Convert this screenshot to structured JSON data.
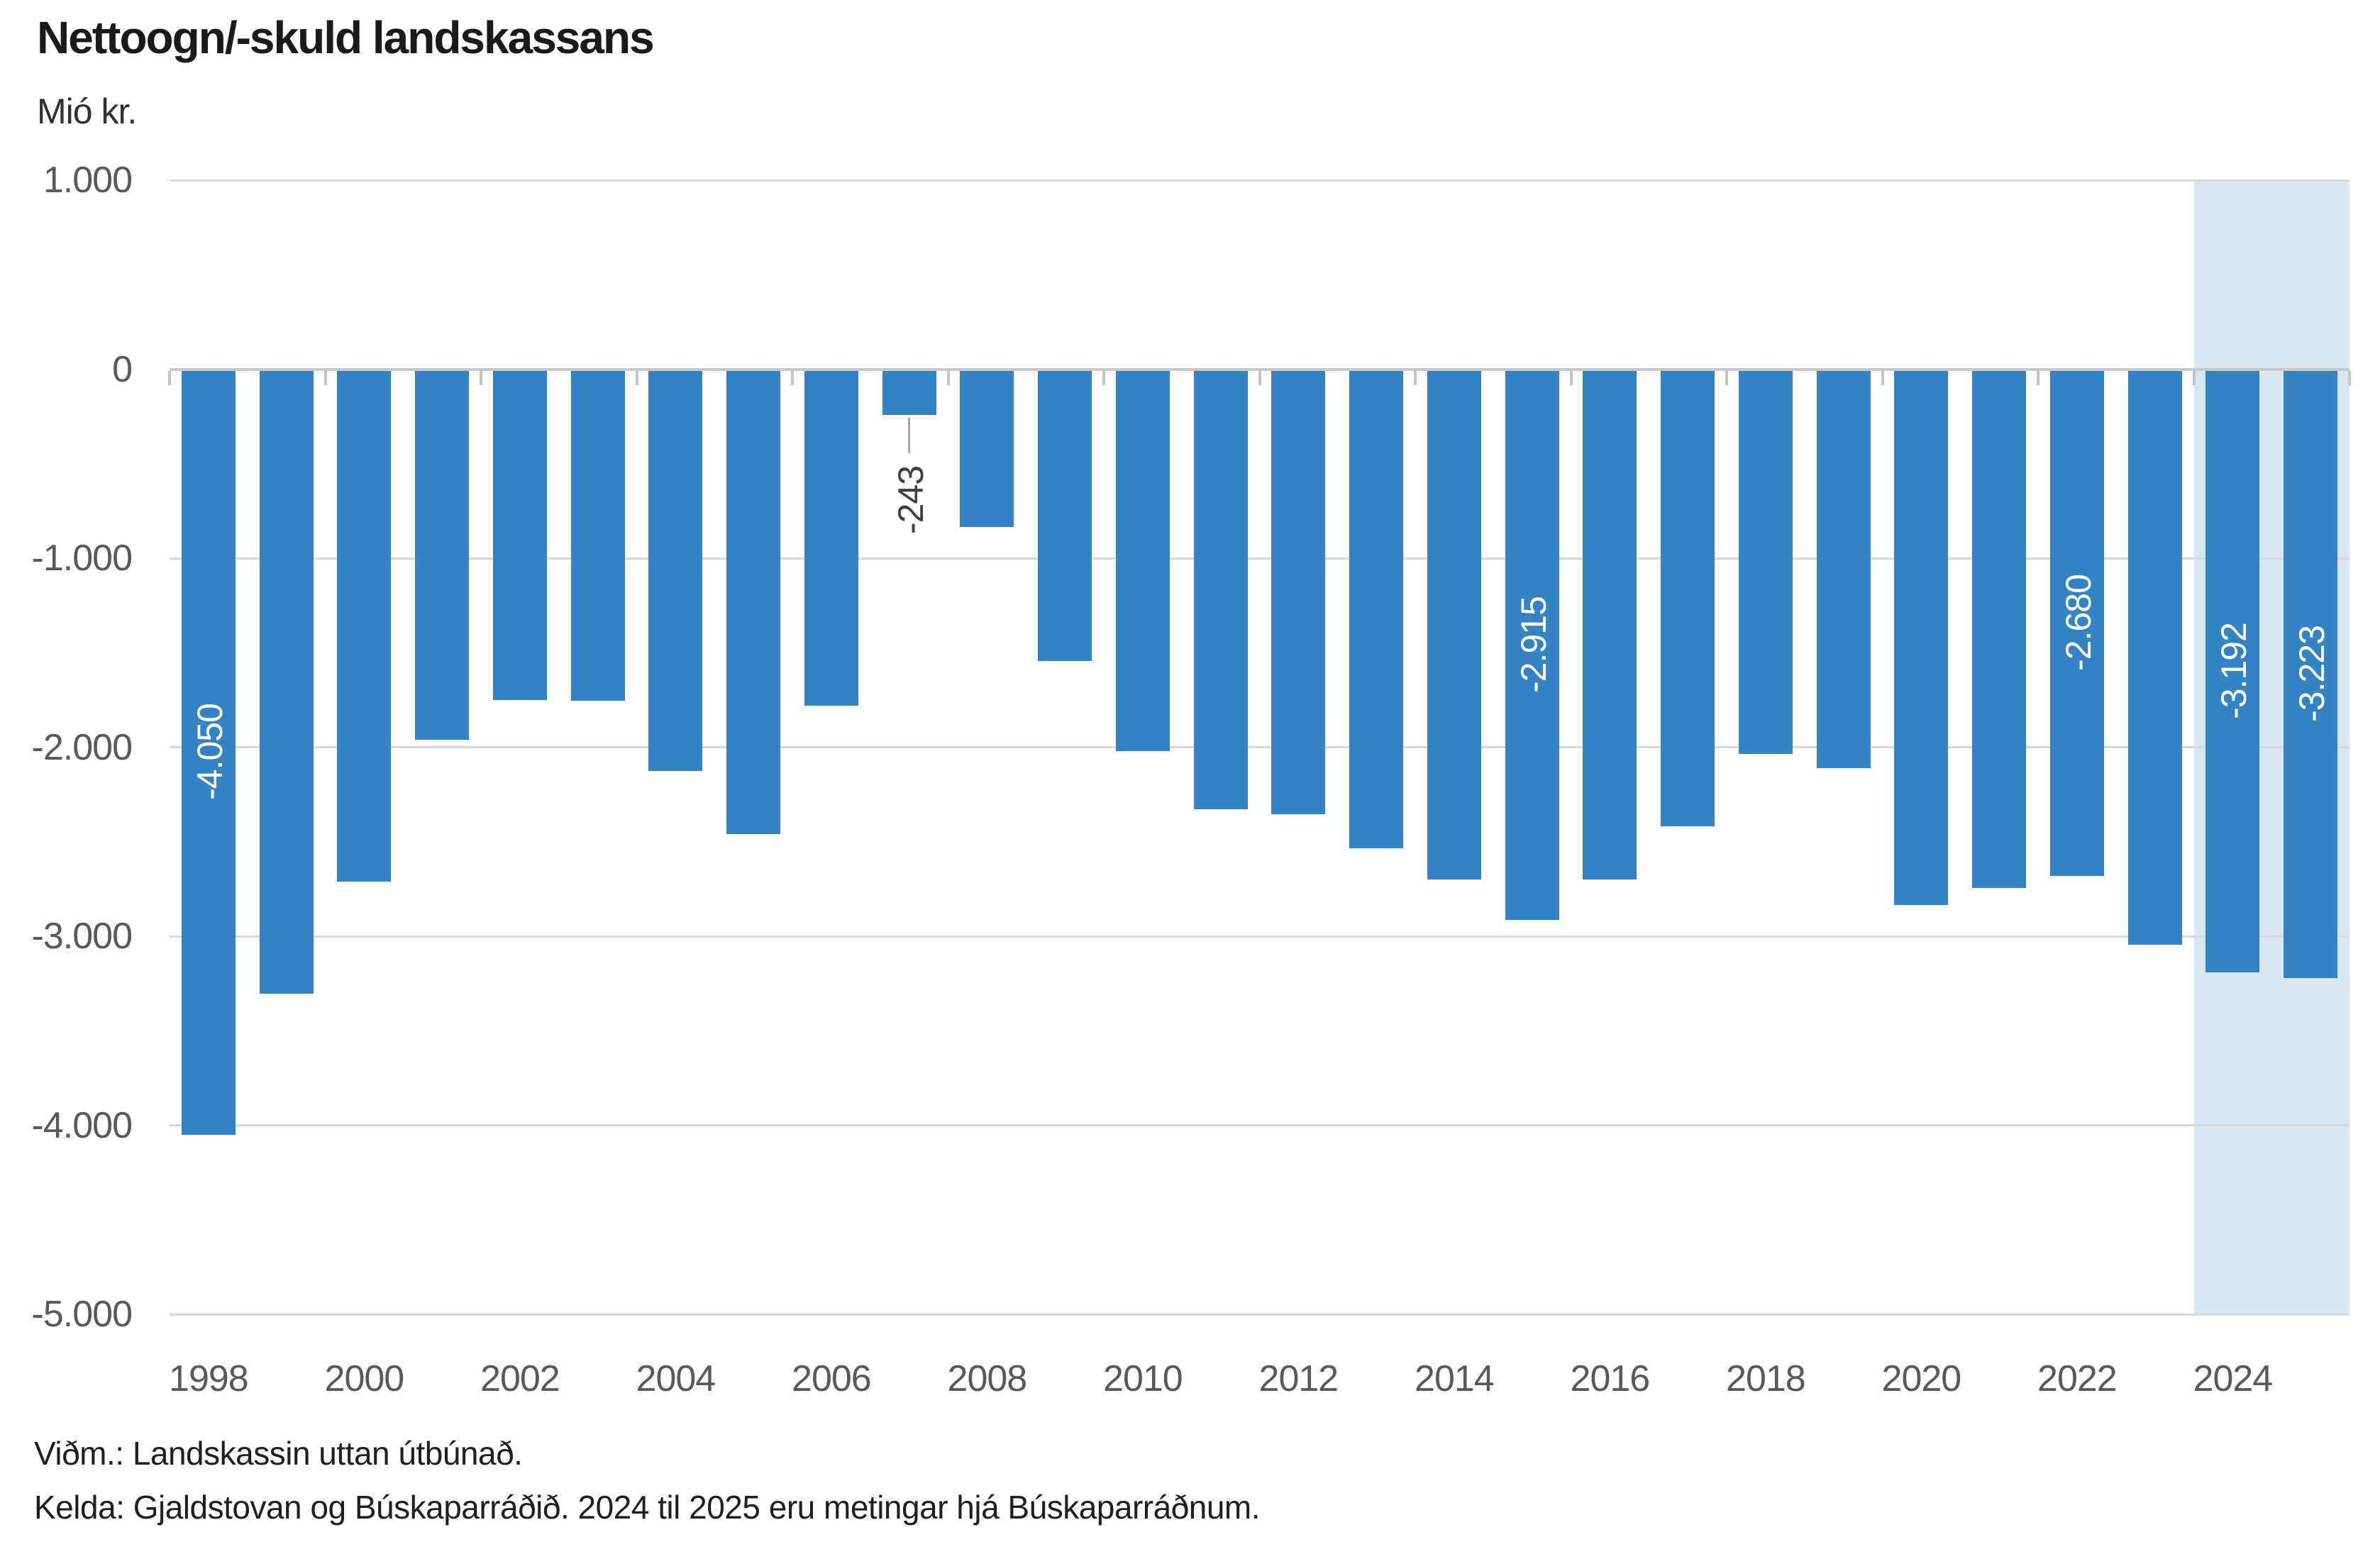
{
  "header": {
    "title": "Nettoogn/-skuld landskassans",
    "unit_label": "Mió kr."
  },
  "footnotes": [
    "Viðm.: Landskassin uttan útbúnað.",
    "Kelda: Gjaldstovan og Búskaparráðið. 2024 til 2025 eru metingar hjá Búskaparráðnum."
  ],
  "chart_data": {
    "type": "bar",
    "title": "Nettoogn/-skuld landskassans",
    "ylabel": "Mió kr.",
    "xlabel": "",
    "ylim": [
      -5000,
      1000
    ],
    "grid": true,
    "legend_position": "none",
    "categories": [
      1998,
      1999,
      2000,
      2001,
      2002,
      2003,
      2004,
      2005,
      2006,
      2007,
      2008,
      2009,
      2010,
      2011,
      2012,
      2013,
      2014,
      2015,
      2016,
      2017,
      2018,
      2019,
      2020,
      2021,
      2022,
      2023,
      2024,
      2025
    ],
    "values": [
      -4050,
      -3305,
      -2710,
      -1960,
      -1750,
      -1755,
      -2125,
      -2460,
      -1780,
      -243,
      -835,
      -1545,
      -2020,
      -2330,
      -2355,
      -2535,
      -2700,
      -2915,
      -2700,
      -2420,
      -2035,
      -2110,
      -2835,
      -2745,
      -2680,
      -3045,
      -3192,
      -3223
    ],
    "y_ticks": [
      {
        "label": "1.000",
        "value": 1000
      },
      {
        "label": "0",
        "value": 0
      },
      {
        "label": "-1.000",
        "value": -1000
      },
      {
        "label": "-2.000",
        "value": -2000
      },
      {
        "label": "-3.000",
        "value": -3000
      },
      {
        "label": "-4.000",
        "value": -4000
      },
      {
        "label": "-5.000",
        "value": -5000
      }
    ],
    "x_tick_labels": [
      "1998",
      "2000",
      "2002",
      "2004",
      "2006",
      "2008",
      "2010",
      "2012",
      "2014",
      "2016",
      "2018",
      "2020",
      "2022",
      "2024"
    ],
    "data_labels": [
      {
        "year": 1998,
        "text": "-4.050",
        "placement": "inside"
      },
      {
        "year": 2007,
        "text": "-243",
        "placement": "outside"
      },
      {
        "year": 2015,
        "text": "-2.915",
        "placement": "inside"
      },
      {
        "year": 2022,
        "text": "-2.680",
        "placement": "inside"
      },
      {
        "year": 2024,
        "text": "-3.192",
        "placement": "inside"
      },
      {
        "year": 2025,
        "text": "-3.223",
        "placement": "inside"
      }
    ],
    "highlight": {
      "from_year": 2024,
      "to_year": 2025
    },
    "colors": {
      "bar": "#3483C4",
      "highlight_band": "#D9E7F3",
      "gridline": "#D9D9D9",
      "zero_line": "#C9C9C9",
      "axis_tick": "#C4C4C4",
      "leader_line": "#ABABAB",
      "label_inside": "#FFFFFF",
      "label_outside": "#3F3F3F",
      "axis_text": "#595959",
      "title_text": "#1A1A1A"
    }
  }
}
